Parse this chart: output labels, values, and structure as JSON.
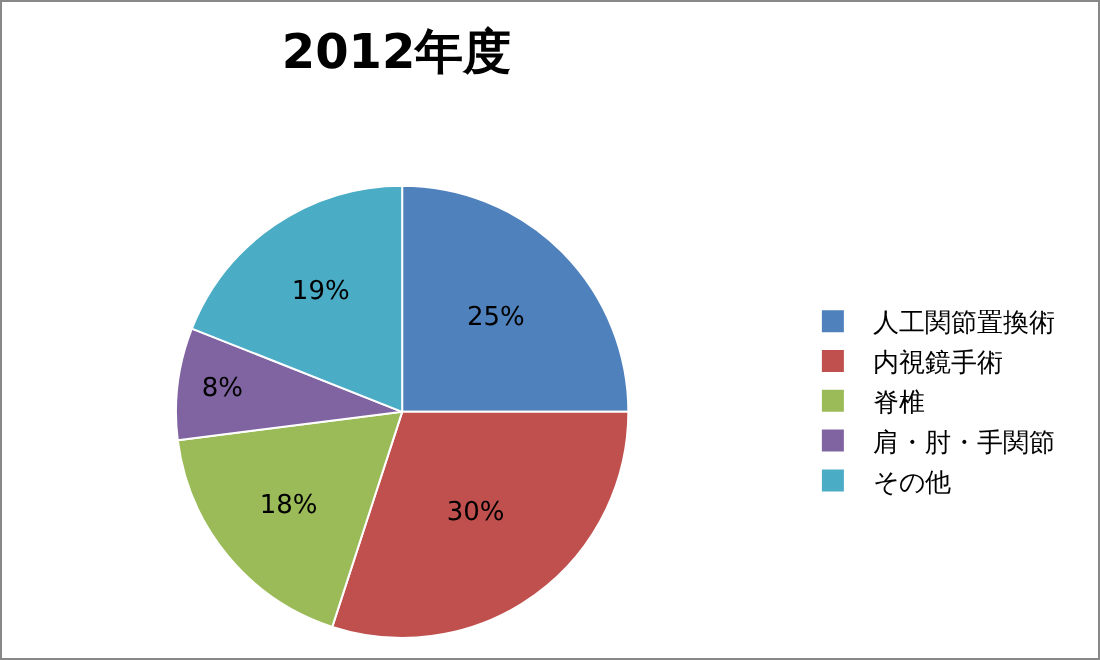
{
  "chart_data": {
    "type": "pie",
    "title": "2012年度",
    "categories": [
      "人工関節置換術",
      "内視鏡手術",
      "脊椎",
      "肩・肘・手関節",
      "その他"
    ],
    "values": [
      25,
      30,
      18,
      8,
      19
    ],
    "value_labels": [
      "25%",
      "30%",
      "18%",
      "8%",
      "19%"
    ],
    "colors": [
      "#4f81bd",
      "#c0504d",
      "#9bbb59",
      "#8064a2",
      "#4bacc6"
    ],
    "legend": "right"
  }
}
